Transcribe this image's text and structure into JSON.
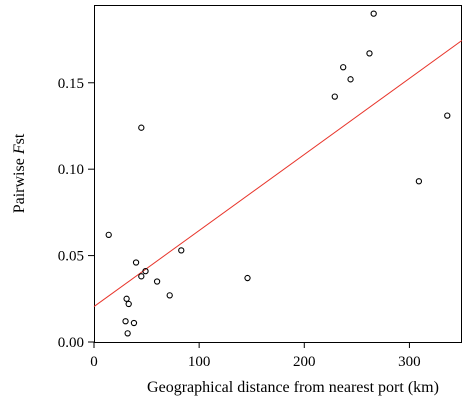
{
  "chart_data": {
    "type": "scatter",
    "title": "",
    "xlabel": "Geographical distance from nearest port (km)",
    "ylabel": "Pairwise Fst",
    "ylabel_parts": {
      "prefix": "Pairwise ",
      "italic": "F",
      "suffix": "st"
    },
    "xlim": [
      0,
      350
    ],
    "ylim": [
      0,
      0.195
    ],
    "x_ticks": [
      {
        "value": 0,
        "label": "0"
      },
      {
        "value": 100,
        "label": "100"
      },
      {
        "value": 200,
        "label": "200"
      },
      {
        "value": 300,
        "label": "300"
      }
    ],
    "y_ticks": [
      {
        "value": 0.0,
        "label": "0.00"
      },
      {
        "value": 0.05,
        "label": "0.05"
      },
      {
        "value": 0.1,
        "label": "0.10"
      },
      {
        "value": 0.15,
        "label": "0.15"
      }
    ],
    "grid": false,
    "points": [
      {
        "x": 14,
        "y": 0.062
      },
      {
        "x": 30,
        "y": 0.012
      },
      {
        "x": 32,
        "y": 0.005
      },
      {
        "x": 31,
        "y": 0.025
      },
      {
        "x": 33,
        "y": 0.022
      },
      {
        "x": 38,
        "y": 0.011
      },
      {
        "x": 40,
        "y": 0.046
      },
      {
        "x": 45,
        "y": 0.038
      },
      {
        "x": 45,
        "y": 0.124
      },
      {
        "x": 49,
        "y": 0.041
      },
      {
        "x": 60,
        "y": 0.035
      },
      {
        "x": 72,
        "y": 0.027
      },
      {
        "x": 83,
        "y": 0.053
      },
      {
        "x": 146,
        "y": 0.037
      },
      {
        "x": 229,
        "y": 0.142
      },
      {
        "x": 237,
        "y": 0.159
      },
      {
        "x": 244,
        "y": 0.152
      },
      {
        "x": 262,
        "y": 0.167
      },
      {
        "x": 266,
        "y": 0.19
      },
      {
        "x": 309,
        "y": 0.093
      },
      {
        "x": 336,
        "y": 0.131
      }
    ],
    "regression_line": {
      "color": "#e8352b",
      "points": [
        {
          "x": 0,
          "y": 0.0205
        },
        {
          "x": 350,
          "y": 0.1745
        }
      ]
    },
    "marker_color": "#000000"
  }
}
